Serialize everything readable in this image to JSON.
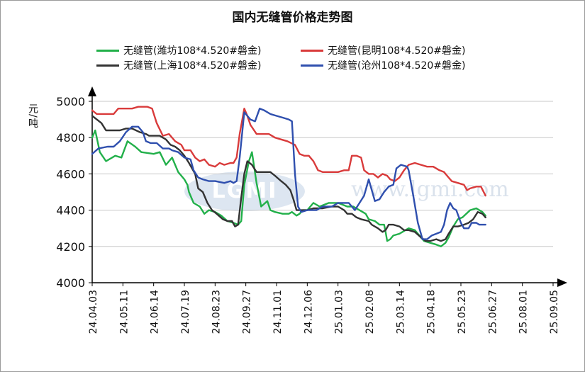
{
  "chart_data": {
    "type": "line",
    "title": "国内无缝管价格走势图",
    "ylabel": "元/吨",
    "xlabel": "",
    "ylim": [
      4000,
      5000
    ],
    "yticks": [
      4000,
      4200,
      4400,
      4600,
      4800,
      5000
    ],
    "grid": "horizontal",
    "legend_position": "top",
    "x_tick_labels": [
      "24.04.03",
      "24.05.11",
      "24.06.14",
      "24.07.19",
      "24.08.23",
      "24.09.27",
      "24.11.01",
      "24.12.06",
      "25.01.03",
      "25.02.08",
      "25.03.14",
      "25.04.18",
      "25.05.23",
      "25.06.27",
      "25.08.01",
      "25.09.05"
    ],
    "series": [
      {
        "name": "无缝管(潍坊108*4.520#磐金)",
        "color": "#22b04a",
        "points": [
          [
            0,
            4800
          ],
          [
            0.1,
            4840
          ],
          [
            0.25,
            4720
          ],
          [
            0.45,
            4670
          ],
          [
            0.75,
            4700
          ],
          [
            0.95,
            4690
          ],
          [
            1.15,
            4780
          ],
          [
            1.4,
            4750
          ],
          [
            1.6,
            4720
          ],
          [
            2.0,
            4710
          ],
          [
            2.2,
            4720
          ],
          [
            2.4,
            4650
          ],
          [
            2.6,
            4690
          ],
          [
            2.8,
            4610
          ],
          [
            3.0,
            4570
          ],
          [
            3.1,
            4540
          ],
          [
            3.15,
            4500
          ],
          [
            3.3,
            4440
          ],
          [
            3.5,
            4420
          ],
          [
            3.65,
            4380
          ],
          [
            3.8,
            4400
          ],
          [
            4.0,
            4390
          ],
          [
            4.2,
            4370
          ],
          [
            4.4,
            4340
          ],
          [
            4.6,
            4330
          ],
          [
            4.75,
            4320
          ],
          [
            4.85,
            4340
          ],
          [
            4.95,
            4540
          ],
          [
            5.1,
            4670
          ],
          [
            5.2,
            4720
          ],
          [
            5.35,
            4550
          ],
          [
            5.5,
            4420
          ],
          [
            5.7,
            4450
          ],
          [
            5.8,
            4400
          ],
          [
            5.95,
            4390
          ],
          [
            6.2,
            4380
          ],
          [
            6.4,
            4380
          ],
          [
            6.5,
            4390
          ],
          [
            6.65,
            4370
          ],
          [
            6.75,
            4380
          ],
          [
            6.85,
            4400
          ],
          [
            7.0,
            4400
          ],
          [
            7.2,
            4440
          ],
          [
            7.4,
            4420
          ],
          [
            7.7,
            4440
          ],
          [
            8.0,
            4440
          ],
          [
            8.15,
            4430
          ],
          [
            8.3,
            4420
          ],
          [
            8.5,
            4420
          ],
          [
            8.7,
            4400
          ],
          [
            8.9,
            4380
          ],
          [
            9.0,
            4350
          ],
          [
            9.2,
            4340
          ],
          [
            9.35,
            4320
          ],
          [
            9.5,
            4320
          ],
          [
            9.55,
            4280
          ],
          [
            9.6,
            4230
          ],
          [
            9.7,
            4240
          ],
          [
            9.8,
            4260
          ],
          [
            10.0,
            4270
          ],
          [
            10.3,
            4300
          ],
          [
            10.5,
            4290
          ],
          [
            10.8,
            4230
          ],
          [
            11.0,
            4220
          ],
          [
            11.2,
            4210
          ],
          [
            11.35,
            4200
          ],
          [
            11.5,
            4220
          ],
          [
            11.6,
            4250
          ],
          [
            11.75,
            4310
          ],
          [
            11.9,
            4350
          ],
          [
            12.05,
            4360
          ],
          [
            12.3,
            4400
          ],
          [
            12.5,
            4410
          ],
          [
            12.7,
            4390
          ],
          [
            12.8,
            4370
          ]
        ]
      },
      {
        "name": "无缝管(昆明108*4.520#磐金)",
        "color": "#d93b3b",
        "points": [
          [
            0,
            4950
          ],
          [
            0.15,
            4930
          ],
          [
            0.4,
            4930
          ],
          [
            0.7,
            4930
          ],
          [
            0.85,
            4960
          ],
          [
            1.1,
            4960
          ],
          [
            1.3,
            4960
          ],
          [
            1.5,
            4970
          ],
          [
            1.8,
            4970
          ],
          [
            1.95,
            4960
          ],
          [
            2.1,
            4880
          ],
          [
            2.3,
            4810
          ],
          [
            2.5,
            4820
          ],
          [
            2.7,
            4780
          ],
          [
            2.9,
            4760
          ],
          [
            3.0,
            4730
          ],
          [
            3.2,
            4730
          ],
          [
            3.35,
            4690
          ],
          [
            3.5,
            4670
          ],
          [
            3.65,
            4680
          ],
          [
            3.8,
            4650
          ],
          [
            4.0,
            4640
          ],
          [
            4.15,
            4660
          ],
          [
            4.3,
            4650
          ],
          [
            4.5,
            4660
          ],
          [
            4.6,
            4660
          ],
          [
            4.7,
            4690
          ],
          [
            4.8,
            4820
          ],
          [
            4.95,
            4960
          ],
          [
            5.05,
            4920
          ],
          [
            5.15,
            4870
          ],
          [
            5.35,
            4820
          ],
          [
            5.55,
            4820
          ],
          [
            5.75,
            4820
          ],
          [
            5.95,
            4800
          ],
          [
            6.15,
            4790
          ],
          [
            6.35,
            4780
          ],
          [
            6.6,
            4760
          ],
          [
            6.75,
            4710
          ],
          [
            6.9,
            4700
          ],
          [
            7.05,
            4700
          ],
          [
            7.2,
            4670
          ],
          [
            7.35,
            4620
          ],
          [
            7.5,
            4610
          ],
          [
            7.75,
            4610
          ],
          [
            8.0,
            4610
          ],
          [
            8.2,
            4620
          ],
          [
            8.35,
            4620
          ],
          [
            8.45,
            4700
          ],
          [
            8.6,
            4700
          ],
          [
            8.75,
            4690
          ],
          [
            8.85,
            4620
          ],
          [
            9.0,
            4600
          ],
          [
            9.15,
            4600
          ],
          [
            9.3,
            4580
          ],
          [
            9.45,
            4600
          ],
          [
            9.6,
            4590
          ],
          [
            9.7,
            4570
          ],
          [
            9.85,
            4560
          ],
          [
            10.0,
            4580
          ],
          [
            10.15,
            4620
          ],
          [
            10.3,
            4650
          ],
          [
            10.5,
            4660
          ],
          [
            10.7,
            4650
          ],
          [
            10.9,
            4640
          ],
          [
            11.1,
            4640
          ],
          [
            11.3,
            4620
          ],
          [
            11.45,
            4610
          ],
          [
            11.55,
            4590
          ],
          [
            11.7,
            4560
          ],
          [
            11.9,
            4550
          ],
          [
            12.1,
            4540
          ],
          [
            12.2,
            4510
          ],
          [
            12.3,
            4520
          ],
          [
            12.5,
            4530
          ],
          [
            12.65,
            4530
          ],
          [
            12.8,
            4480
          ]
        ]
      },
      {
        "name": "无缝管(上海108*4.520#磐金)",
        "color": "#333333",
        "points": [
          [
            0,
            4920
          ],
          [
            0.15,
            4900
          ],
          [
            0.3,
            4880
          ],
          [
            0.45,
            4840
          ],
          [
            0.65,
            4840
          ],
          [
            0.9,
            4840
          ],
          [
            1.1,
            4850
          ],
          [
            1.3,
            4850
          ],
          [
            1.55,
            4830
          ],
          [
            1.75,
            4820
          ],
          [
            1.85,
            4810
          ],
          [
            2.0,
            4810
          ],
          [
            2.2,
            4810
          ],
          [
            2.4,
            4790
          ],
          [
            2.55,
            4760
          ],
          [
            2.7,
            4750
          ],
          [
            2.85,
            4730
          ],
          [
            3.0,
            4700
          ],
          [
            3.15,
            4660
          ],
          [
            3.35,
            4600
          ],
          [
            3.45,
            4520
          ],
          [
            3.6,
            4500
          ],
          [
            3.75,
            4440
          ],
          [
            3.9,
            4400
          ],
          [
            4.05,
            4380
          ],
          [
            4.25,
            4350
          ],
          [
            4.4,
            4340
          ],
          [
            4.55,
            4340
          ],
          [
            4.65,
            4310
          ],
          [
            4.75,
            4320
          ],
          [
            4.85,
            4470
          ],
          [
            4.95,
            4600
          ],
          [
            5.05,
            4670
          ],
          [
            5.2,
            4650
          ],
          [
            5.35,
            4610
          ],
          [
            5.55,
            4610
          ],
          [
            5.8,
            4610
          ],
          [
            5.95,
            4590
          ],
          [
            6.15,
            4560
          ],
          [
            6.3,
            4540
          ],
          [
            6.45,
            4510
          ],
          [
            6.55,
            4460
          ],
          [
            6.65,
            4400
          ],
          [
            6.8,
            4400
          ],
          [
            7.0,
            4400
          ],
          [
            7.2,
            4410
          ],
          [
            7.5,
            4410
          ],
          [
            7.8,
            4420
          ],
          [
            8.0,
            4420
          ],
          [
            8.1,
            4410
          ],
          [
            8.2,
            4400
          ],
          [
            8.3,
            4380
          ],
          [
            8.45,
            4380
          ],
          [
            8.6,
            4360
          ],
          [
            8.75,
            4350
          ],
          [
            9.0,
            4340
          ],
          [
            9.1,
            4320
          ],
          [
            9.3,
            4300
          ],
          [
            9.45,
            4280
          ],
          [
            9.55,
            4290
          ],
          [
            9.65,
            4320
          ],
          [
            9.8,
            4320
          ],
          [
            10.0,
            4310
          ],
          [
            10.15,
            4290
          ],
          [
            10.3,
            4290
          ],
          [
            10.5,
            4280
          ],
          [
            10.7,
            4250
          ],
          [
            10.85,
            4230
          ],
          [
            11.0,
            4230
          ],
          [
            11.2,
            4240
          ],
          [
            11.35,
            4230
          ],
          [
            11.5,
            4240
          ],
          [
            11.6,
            4270
          ],
          [
            11.75,
            4310
          ],
          [
            11.9,
            4310
          ],
          [
            12.1,
            4320
          ],
          [
            12.25,
            4330
          ],
          [
            12.4,
            4350
          ],
          [
            12.55,
            4390
          ],
          [
            12.7,
            4380
          ],
          [
            12.8,
            4360
          ]
        ]
      },
      {
        "name": "无缝管(沧州108*4.520#磐金)",
        "color": "#2f4fae",
        "points": [
          [
            0,
            4710
          ],
          [
            0.2,
            4740
          ],
          [
            0.5,
            4750
          ],
          [
            0.7,
            4750
          ],
          [
            0.9,
            4780
          ],
          [
            1.1,
            4830
          ],
          [
            1.3,
            4860
          ],
          [
            1.5,
            4860
          ],
          [
            1.65,
            4830
          ],
          [
            1.75,
            4780
          ],
          [
            1.9,
            4770
          ],
          [
            2.1,
            4770
          ],
          [
            2.3,
            4740
          ],
          [
            2.5,
            4740
          ],
          [
            2.6,
            4730
          ],
          [
            2.8,
            4720
          ],
          [
            3.0,
            4690
          ],
          [
            3.2,
            4680
          ],
          [
            3.3,
            4620
          ],
          [
            3.45,
            4580
          ],
          [
            3.6,
            4570
          ],
          [
            3.8,
            4560
          ],
          [
            4.0,
            4560
          ],
          [
            4.3,
            4550
          ],
          [
            4.5,
            4560
          ],
          [
            4.6,
            4550
          ],
          [
            4.7,
            4560
          ],
          [
            4.8,
            4690
          ],
          [
            4.95,
            4940
          ],
          [
            5.05,
            4920
          ],
          [
            5.15,
            4900
          ],
          [
            5.3,
            4890
          ],
          [
            5.45,
            4960
          ],
          [
            5.6,
            4950
          ],
          [
            5.8,
            4930
          ],
          [
            6.0,
            4920
          ],
          [
            6.2,
            4910
          ],
          [
            6.4,
            4900
          ],
          [
            6.5,
            4890
          ],
          [
            6.6,
            4600
          ],
          [
            6.7,
            4420
          ],
          [
            6.8,
            4390
          ],
          [
            7.0,
            4400
          ],
          [
            7.3,
            4400
          ],
          [
            7.5,
            4420
          ],
          [
            7.8,
            4420
          ],
          [
            8.0,
            4440
          ],
          [
            8.2,
            4440
          ],
          [
            8.35,
            4440
          ],
          [
            8.45,
            4420
          ],
          [
            8.55,
            4400
          ],
          [
            8.7,
            4440
          ],
          [
            8.85,
            4480
          ],
          [
            9.0,
            4570
          ],
          [
            9.1,
            4510
          ],
          [
            9.2,
            4450
          ],
          [
            9.35,
            4460
          ],
          [
            9.5,
            4500
          ],
          [
            9.65,
            4530
          ],
          [
            9.8,
            4540
          ],
          [
            9.9,
            4630
          ],
          [
            10.05,
            4650
          ],
          [
            10.25,
            4640
          ],
          [
            10.3,
            4620
          ],
          [
            10.45,
            4480
          ],
          [
            10.6,
            4330
          ],
          [
            10.75,
            4240
          ],
          [
            10.9,
            4240
          ],
          [
            11.05,
            4260
          ],
          [
            11.2,
            4270
          ],
          [
            11.35,
            4280
          ],
          [
            11.45,
            4320
          ],
          [
            11.55,
            4400
          ],
          [
            11.65,
            4440
          ],
          [
            11.75,
            4410
          ],
          [
            11.85,
            4400
          ],
          [
            12.0,
            4330
          ],
          [
            12.1,
            4300
          ],
          [
            12.25,
            4300
          ],
          [
            12.35,
            4330
          ],
          [
            12.5,
            4330
          ],
          [
            12.6,
            4320
          ],
          [
            12.8,
            4320
          ]
        ]
      }
    ]
  },
  "watermark": {
    "logo_text": "LGMI",
    "url_text": "www.lgmi.com"
  }
}
